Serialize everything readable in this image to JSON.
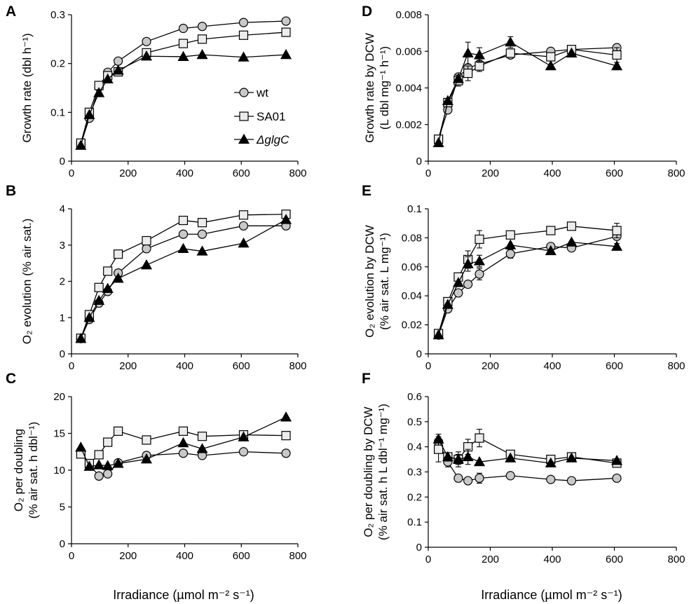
{
  "figure": {
    "xlabel": "Irradiance (µmol m⁻² s⁻¹)",
    "legend": [
      {
        "name": "wt",
        "marker": "circle",
        "fill": "#c8c8c8"
      },
      {
        "name": "SA01",
        "marker": "square",
        "fill": "#ececec"
      },
      {
        "name": "ΔglgC",
        "marker": "triangle",
        "fill": "#000000"
      }
    ]
  },
  "chart_data": [
    {
      "panel": "A",
      "type": "line",
      "ylabel_lines": [
        "Growth rate (dbl h⁻¹)"
      ],
      "xlim": [
        0,
        800
      ],
      "xticks": [
        0,
        200,
        400,
        600,
        800
      ],
      "ylim": [
        0,
        0.3
      ],
      "yticks": [
        0,
        0.1,
        0.2,
        0.3
      ],
      "ytick_labels": [
        "0",
        "0.1",
        "0.2",
        "0.3"
      ],
      "series": [
        {
          "name": "wt",
          "x": [
            33,
            63,
            97,
            128,
            165,
            265,
            395,
            462,
            608,
            758
          ],
          "y": [
            0.035,
            0.088,
            0.152,
            0.182,
            0.205,
            0.245,
            0.272,
            0.276,
            0.284,
            0.287
          ]
        },
        {
          "name": "SA01",
          "x": [
            33,
            63,
            97,
            128,
            165,
            265,
            395,
            462,
            608,
            758
          ],
          "y": [
            0.037,
            0.1,
            0.155,
            0.175,
            0.183,
            0.222,
            0.241,
            0.25,
            0.258,
            0.264
          ]
        },
        {
          "name": "ΔglgC",
          "x": [
            33,
            63,
            97,
            128,
            165,
            265,
            395,
            462,
            608,
            758
          ],
          "y": [
            0.032,
            0.095,
            0.14,
            0.168,
            0.186,
            0.215,
            0.214,
            0.218,
            0.213,
            0.218
          ]
        }
      ]
    },
    {
      "panel": "B",
      "type": "line",
      "ylabel_lines": [
        "O₂ evolution (% air sat.)"
      ],
      "xlim": [
        0,
        800
      ],
      "xticks": [
        0,
        200,
        400,
        600,
        800
      ],
      "ylim": [
        0,
        4
      ],
      "yticks": [
        0,
        1,
        2,
        3,
        4
      ],
      "ytick_labels": [
        "0",
        "1",
        "2",
        "3",
        "4"
      ],
      "series": [
        {
          "name": "wt",
          "x": [
            33,
            63,
            97,
            128,
            165,
            265,
            395,
            462,
            608,
            758
          ],
          "y": [
            0.42,
            0.95,
            1.4,
            1.72,
            2.23,
            2.9,
            3.3,
            3.3,
            3.53,
            3.53
          ]
        },
        {
          "name": "SA01",
          "x": [
            33,
            63,
            97,
            128,
            165,
            265,
            395,
            462,
            608,
            758
          ],
          "y": [
            0.43,
            1.08,
            1.83,
            2.28,
            2.75,
            3.12,
            3.68,
            3.62,
            3.83,
            3.85
          ]
        },
        {
          "name": "ΔglgC",
          "x": [
            33,
            63,
            97,
            128,
            165,
            265,
            395,
            462,
            608,
            758
          ],
          "y": [
            0.42,
            1.0,
            1.47,
            1.8,
            2.08,
            2.45,
            2.9,
            2.83,
            3.05,
            3.7
          ]
        }
      ]
    },
    {
      "panel": "C",
      "type": "line",
      "ylabel_lines": [
        "O₂ per doubling",
        "(% air sat. h dbl⁻¹)"
      ],
      "xlim": [
        0,
        800
      ],
      "xticks": [
        0,
        200,
        400,
        600,
        800
      ],
      "ylim": [
        0,
        20
      ],
      "yticks": [
        0,
        5,
        10,
        15,
        20
      ],
      "ytick_labels": [
        "0",
        "5",
        "10",
        "15",
        "20"
      ],
      "series": [
        {
          "name": "wt",
          "x": [
            33,
            63,
            97,
            128,
            165,
            265,
            395,
            462,
            608,
            758
          ],
          "y": [
            12.6,
            10.8,
            9.2,
            9.5,
            11.0,
            12.0,
            12.3,
            12.0,
            12.5,
            12.3
          ]
        },
        {
          "name": "SA01",
          "x": [
            33,
            63,
            97,
            128,
            165,
            265,
            395,
            462,
            608,
            758
          ],
          "y": [
            12.2,
            10.9,
            12.1,
            13.8,
            15.3,
            14.1,
            15.3,
            14.6,
            14.8,
            14.7
          ]
        },
        {
          "name": "ΔglgC",
          "x": [
            33,
            63,
            97,
            128,
            165,
            265,
            395,
            462,
            608,
            758
          ],
          "y": [
            13.1,
            10.5,
            10.7,
            10.6,
            10.9,
            11.5,
            13.7,
            12.9,
            14.5,
            17.2
          ]
        }
      ]
    },
    {
      "panel": "D",
      "type": "line",
      "ylabel_lines": [
        "Growth rate by DCW",
        "(L dbl mg⁻¹ h⁻¹)"
      ],
      "xlim": [
        0,
        800
      ],
      "xticks": [
        0,
        200,
        400,
        600,
        800
      ],
      "ylim": [
        0,
        0.008
      ],
      "yticks": [
        0,
        0.002,
        0.004,
        0.006,
        0.008
      ],
      "ytick_labels": [
        "0",
        "0.002",
        "0.004",
        "0.006",
        "0.008"
      ],
      "series": [
        {
          "name": "wt",
          "x": [
            33,
            63,
            97,
            128,
            165,
            265,
            395,
            462,
            608
          ],
          "y": [
            0.0012,
            0.0028,
            0.0046,
            0.0051,
            0.0053,
            0.0058,
            0.006,
            0.0061,
            0.0062
          ],
          "err": [
            0,
            0,
            0,
            0,
            0,
            0,
            0,
            0,
            0
          ]
        },
        {
          "name": "SA01",
          "x": [
            33,
            63,
            97,
            128,
            165,
            265,
            395,
            462,
            608
          ],
          "y": [
            0.0012,
            0.0032,
            0.0044,
            0.0048,
            0.0052,
            0.0059,
            0.0057,
            0.0061,
            0.0058
          ],
          "err": [
            0,
            0,
            0.0003,
            0.0004,
            0.0003,
            0.0002,
            0,
            0,
            0.0004
          ]
        },
        {
          "name": "ΔglgC",
          "x": [
            33,
            63,
            97,
            128,
            165,
            265,
            395,
            462,
            608
          ],
          "y": [
            0.001,
            0.0033,
            0.0045,
            0.0059,
            0.0058,
            0.0065,
            0.0052,
            0.0059,
            0.0052
          ],
          "err": [
            0,
            0,
            0,
            0.0006,
            0.0004,
            0.0003,
            0,
            0,
            0
          ]
        }
      ]
    },
    {
      "panel": "E",
      "type": "line",
      "ylabel_lines": [
        "O₂ evolution by DCW",
        "(% air sat. L mg⁻¹)"
      ],
      "xlim": [
        0,
        800
      ],
      "xticks": [
        0,
        200,
        400,
        600,
        800
      ],
      "ylim": [
        0,
        0.1
      ],
      "yticks": [
        0,
        0.02,
        0.04,
        0.06,
        0.08,
        0.1
      ],
      "ytick_labels": [
        "0",
        "0.02",
        "0.04",
        "0.06",
        "0.08",
        "0.1"
      ],
      "series": [
        {
          "name": "wt",
          "x": [
            33,
            63,
            97,
            128,
            165,
            265,
            395,
            462,
            608
          ],
          "y": [
            0.013,
            0.031,
            0.042,
            0.048,
            0.055,
            0.069,
            0.074,
            0.073,
            0.081
          ],
          "err": [
            0,
            0,
            0,
            0,
            0.004,
            0.003,
            0,
            0,
            0.005
          ]
        },
        {
          "name": "SA01",
          "x": [
            33,
            63,
            97,
            128,
            165,
            265,
            395,
            462,
            608
          ],
          "y": [
            0.014,
            0.036,
            0.053,
            0.065,
            0.079,
            0.082,
            0.085,
            0.088,
            0.085
          ],
          "err": [
            0,
            0,
            0,
            0.006,
            0.006,
            0,
            0,
            0,
            0.005
          ]
        },
        {
          "name": "ΔglgC",
          "x": [
            33,
            63,
            97,
            128,
            165,
            265,
            395,
            462,
            608
          ],
          "y": [
            0.013,
            0.034,
            0.049,
            0.062,
            0.064,
            0.075,
            0.071,
            0.077,
            0.074
          ],
          "err": [
            0,
            0,
            0,
            0.005,
            0.004,
            0,
            0,
            0,
            0
          ]
        }
      ]
    },
    {
      "panel": "F",
      "type": "line",
      "ylabel_lines": [
        "O₂ per doubling by DCW",
        "(% air sat. h L dbl⁻¹ mg⁻¹)"
      ],
      "xlim": [
        0,
        800
      ],
      "xticks": [
        0,
        200,
        400,
        600,
        800
      ],
      "ylim": [
        0,
        0.6
      ],
      "yticks": [
        0,
        0.1,
        0.2,
        0.3,
        0.4,
        0.5,
        0.6
      ],
      "ytick_labels": [
        "0",
        "0.1",
        "0.2",
        "0.3",
        "0.4",
        "0.5",
        "0.6"
      ],
      "series": [
        {
          "name": "wt",
          "x": [
            33,
            63,
            97,
            128,
            165,
            265,
            395,
            462,
            608
          ],
          "y": [
            0.42,
            0.34,
            0.275,
            0.265,
            0.275,
            0.285,
            0.27,
            0.265,
            0.275
          ],
          "err": [
            0.03,
            0.02,
            0,
            0,
            0.02,
            0,
            0,
            0,
            0
          ]
        },
        {
          "name": "SA01",
          "x": [
            33,
            63,
            97,
            128,
            165,
            265,
            395,
            462,
            608
          ],
          "y": [
            0.39,
            0.36,
            0.35,
            0.4,
            0.435,
            0.37,
            0.35,
            0.36,
            0.335
          ],
          "err": [
            0.05,
            0,
            0.02,
            0.03,
            0.035,
            0,
            0,
            0,
            0
          ]
        },
        {
          "name": "ΔglgC",
          "x": [
            33,
            63,
            97,
            128,
            165,
            265,
            395,
            462,
            608
          ],
          "y": [
            0.43,
            0.36,
            0.35,
            0.36,
            0.34,
            0.355,
            0.335,
            0.355,
            0.345
          ],
          "err": [
            0,
            0,
            0.03,
            0.03,
            0,
            0,
            0,
            0,
            0
          ]
        }
      ]
    }
  ]
}
